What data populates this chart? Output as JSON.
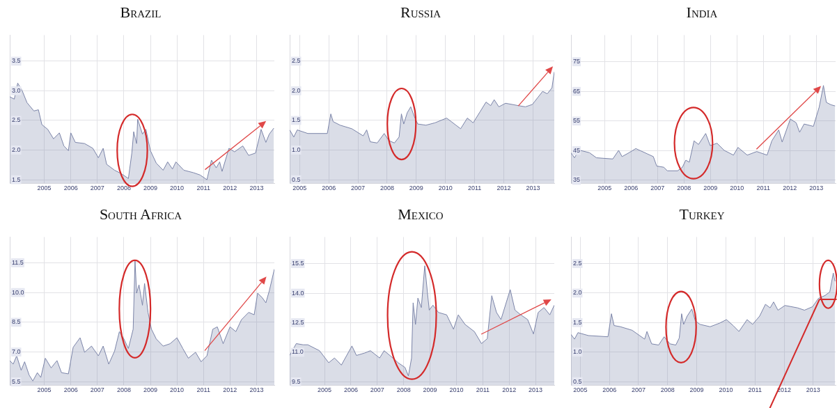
{
  "chart_data": [
    {
      "type": "area",
      "title": "Brazil",
      "color": "#7b84a8",
      "grid": true,
      "xlim": [
        2004.2,
        2014.17
      ],
      "ylim": [
        1.44,
        3.94
      ],
      "xticks": [
        {
          "value": 2005.5,
          "label": "2005"
        },
        {
          "value": 2006.5,
          "label": "2006"
        },
        {
          "value": 2007.5,
          "label": "2007"
        },
        {
          "value": 2008.5,
          "label": "2008"
        },
        {
          "value": 2009.5,
          "label": "2009"
        },
        {
          "value": 2010.5,
          "label": "2010"
        },
        {
          "value": 2011.5,
          "label": "2011"
        },
        {
          "value": 2012.5,
          "label": "2012"
        },
        {
          "value": 2013.5,
          "label": "2013"
        }
      ],
      "yticks": [
        1.5,
        {
          "value": 2,
          "label": "2.0"
        },
        2.5,
        {
          "value": 3,
          "label": "3.0"
        },
        3.5
      ],
      "x": [
        2004.2,
        2004.37,
        2004.5,
        2004.67,
        2004.85,
        2005.11,
        2005.28,
        2005.41,
        2005.63,
        2005.85,
        2006.07,
        2006.24,
        2006.41,
        2006.5,
        2006.67,
        2007.02,
        2007.33,
        2007.54,
        2007.72,
        2007.85,
        2008.15,
        2008.41,
        2008.67,
        2008.8,
        2008.87,
        2008.98,
        2009.02,
        2009.2,
        2009.33,
        2009.5,
        2009.72,
        2009.98,
        2010.15,
        2010.33,
        2010.46,
        2010.76,
        2011.11,
        2011.37,
        2011.63,
        2011.8,
        2011.98,
        2012.11,
        2012.2,
        2012.46,
        2012.67,
        2012.98,
        2013.2,
        2013.46,
        2013.59,
        2013.67,
        2013.85,
        2013.98,
        2014.15
      ],
      "values": [
        2.9,
        2.86,
        3.13,
        3.0,
        2.8,
        2.66,
        2.68,
        2.43,
        2.35,
        2.19,
        2.29,
        2.07,
        1.99,
        2.29,
        2.13,
        2.11,
        2.03,
        1.87,
        2.03,
        1.76,
        1.66,
        1.6,
        1.52,
        1.95,
        2.31,
        2.11,
        2.52,
        2.27,
        2.35,
        1.99,
        1.78,
        1.66,
        1.8,
        1.68,
        1.8,
        1.66,
        1.62,
        1.58,
        1.5,
        1.83,
        1.7,
        1.8,
        1.64,
        2.03,
        1.97,
        2.07,
        1.91,
        1.95,
        2.19,
        2.35,
        2.13,
        2.27,
        2.37
      ]
    },
    {
      "type": "area",
      "title": "Russia",
      "color": "#7b84a8",
      "grid": true,
      "xlim": [
        2005.16,
        2014.23
      ],
      "ylim": [
        0.44,
        2.94
      ],
      "xticks": [
        {
          "value": 2005.5,
          "label": "2005"
        },
        {
          "value": 2006.5,
          "label": "2006"
        },
        {
          "value": 2007.5,
          "label": "2007"
        },
        {
          "value": 2008.5,
          "label": "2008"
        },
        {
          "value": 2009.5,
          "label": "2009"
        },
        {
          "value": 2010.5,
          "label": "2010"
        },
        {
          "value": 2011.5,
          "label": "2011"
        },
        {
          "value": 2012.5,
          "label": "2012"
        },
        {
          "value": 2013.5,
          "label": "2013"
        }
      ],
      "yticks": [
        0.5,
        {
          "value": 1,
          "label": "1.0"
        },
        1.5,
        {
          "value": 2,
          "label": "2.0"
        },
        2.5
      ],
      "x": [
        2005.16,
        2005.3,
        2005.42,
        2005.78,
        2006.45,
        2006.57,
        2006.65,
        2006.89,
        2007.29,
        2007.68,
        2007.8,
        2007.92,
        2008.16,
        2008.4,
        2008.56,
        2008.75,
        2008.91,
        2008.99,
        2009.07,
        2009.19,
        2009.31,
        2009.43,
        2009.55,
        2009.83,
        2010.14,
        2010.54,
        2010.86,
        2011.02,
        2011.25,
        2011.45,
        2011.69,
        2011.89,
        2012.05,
        2012.17,
        2012.33,
        2012.56,
        2013.0,
        2013.24,
        2013.48,
        2013.67,
        2013.83,
        2013.99,
        2014.15,
        2014.23
      ],
      "values": [
        1.34,
        1.22,
        1.34,
        1.28,
        1.28,
        1.61,
        1.48,
        1.42,
        1.36,
        1.24,
        1.34,
        1.14,
        1.12,
        1.28,
        1.16,
        1.12,
        1.22,
        1.61,
        1.44,
        1.63,
        1.73,
        1.57,
        1.44,
        1.42,
        1.46,
        1.54,
        1.42,
        1.36,
        1.54,
        1.46,
        1.65,
        1.81,
        1.75,
        1.85,
        1.73,
        1.79,
        1.75,
        1.73,
        1.77,
        1.89,
        1.99,
        1.95,
        2.05,
        2.32
      ]
    },
    {
      "type": "area",
      "title": "India",
      "color": "#7b84a8",
      "grid": true,
      "xlim": [
        2004.23,
        2014.23
      ],
      "ylim": [
        34,
        84
      ],
      "xticks": [
        {
          "value": 2005.5,
          "label": "2005"
        },
        {
          "value": 2006.5,
          "label": "2006"
        },
        {
          "value": 2007.5,
          "label": "2007"
        },
        {
          "value": 2008.5,
          "label": "2008"
        },
        {
          "value": 2009.5,
          "label": "2009"
        },
        {
          "value": 2010.5,
          "label": "2010"
        },
        {
          "value": 2011.5,
          "label": "2011"
        },
        {
          "value": 2012.5,
          "label": "2012"
        },
        {
          "value": 2013.5,
          "label": "2013"
        }
      ],
      "yticks": [
        35,
        45,
        55,
        65,
        75
      ],
      "x": [
        2004.23,
        2004.36,
        2004.54,
        2004.93,
        2005.19,
        2005.81,
        2006.03,
        2006.16,
        2006.42,
        2006.68,
        2007.12,
        2007.34,
        2007.47,
        2007.74,
        2007.87,
        2008.26,
        2008.44,
        2008.57,
        2008.7,
        2008.88,
        2009.05,
        2009.32,
        2009.49,
        2009.75,
        2010.02,
        2010.37,
        2010.54,
        2010.89,
        2011.25,
        2011.64,
        2011.82,
        2012.08,
        2012.21,
        2012.52,
        2012.74,
        2012.87,
        2013.04,
        2013.39,
        2013.61,
        2013.77,
        2013.88,
        2014.05,
        2014.21
      ],
      "values": [
        44.3,
        42.6,
        45.2,
        44.3,
        42.6,
        42.2,
        45.1,
        43,
        44.3,
        45.7,
        43.9,
        43,
        39.8,
        39.4,
        38.2,
        38.2,
        39.4,
        41.8,
        41.1,
        48.3,
        47.1,
        50.8,
        46.7,
        47.5,
        45.1,
        43.5,
        46.1,
        43.5,
        44.7,
        43.5,
        48.3,
        52,
        47.9,
        55.7,
        54.4,
        51.2,
        54,
        53.2,
        59.7,
        67,
        61.3,
        60.5,
        60.1
      ]
    },
    {
      "type": "area",
      "title": "South Africa",
      "color": "#7b84a8",
      "grid": true,
      "xlim": [
        2004.2,
        2014.17
      ],
      "ylim": [
        5.33,
        12.8
      ],
      "xticks": [
        {
          "value": 2005.5,
          "label": "2005"
        },
        {
          "value": 2006.5,
          "label": "2006"
        },
        {
          "value": 2007.5,
          "label": "2007"
        },
        {
          "value": 2008.5,
          "label": "2008"
        },
        {
          "value": 2009.5,
          "label": "2009"
        },
        {
          "value": 2010.5,
          "label": "2010"
        },
        {
          "value": 2011.5,
          "label": "2011"
        },
        {
          "value": 2012.5,
          "label": "2012"
        },
        {
          "value": 2013.5,
          "label": "2013"
        }
      ],
      "yticks": [
        5.5,
        {
          "value": 7,
          "label": "7.0"
        },
        8.5,
        {
          "value": 10,
          "label": "10.0"
        },
        11.5
      ],
      "x": [
        2004.2,
        2004.33,
        2004.46,
        2004.63,
        2004.76,
        2004.93,
        2005.07,
        2005.24,
        2005.37,
        2005.54,
        2005.76,
        2005.98,
        2006.15,
        2006.41,
        2006.59,
        2006.85,
        2007.02,
        2007.28,
        2007.54,
        2007.72,
        2007.93,
        2008.15,
        2008.33,
        2008.5,
        2008.67,
        2008.85,
        2008.92,
        2008.98,
        2009.07,
        2009.2,
        2009.28,
        2009.41,
        2009.54,
        2009.72,
        2009.98,
        2010.24,
        2010.5,
        2010.72,
        2010.93,
        2011.2,
        2011.41,
        2011.63,
        2011.85,
        2012.02,
        2012.24,
        2012.5,
        2012.72,
        2012.93,
        2013.2,
        2013.41,
        2013.54,
        2013.72,
        2013.85,
        2013.98,
        2014.17
      ],
      "values": [
        6.57,
        6.39,
        6.81,
        6.08,
        6.51,
        5.84,
        5.54,
        5.96,
        5.72,
        6.69,
        6.2,
        6.57,
        5.96,
        5.9,
        7.24,
        7.72,
        6.99,
        7.3,
        6.81,
        7.3,
        6.39,
        7.05,
        8.03,
        7.66,
        7.18,
        8.15,
        11.61,
        9.97,
        10.39,
        9.36,
        10.46,
        9.0,
        8.15,
        7.66,
        7.3,
        7.42,
        7.72,
        7.18,
        6.69,
        6.99,
        6.51,
        6.81,
        8.15,
        8.27,
        7.42,
        8.27,
        8.03,
        8.63,
        9.0,
        8.88,
        9.97,
        9.73,
        9.48,
        10.09,
        11.18
      ]
    },
    {
      "type": "area",
      "title": "Mexico",
      "color": "#7b84a8",
      "grid": true,
      "xlim": [
        2004.18,
        2014.21
      ],
      "ylim": [
        9.33,
        16.85
      ],
      "xticks": [
        {
          "value": 2005.5,
          "label": "2005"
        },
        {
          "value": 2006.5,
          "label": "2006"
        },
        {
          "value": 2007.5,
          "label": "2007"
        },
        {
          "value": 2008.5,
          "label": "2008"
        },
        {
          "value": 2009.5,
          "label": "2009"
        },
        {
          "value": 2010.5,
          "label": "2010"
        },
        {
          "value": 2011.5,
          "label": "2011"
        },
        {
          "value": 2012.5,
          "label": "2012"
        },
        {
          "value": 2013.5,
          "label": "2013"
        }
      ],
      "yticks": [
        9.5,
        {
          "value": 11,
          "label": "11.0"
        },
        12.5,
        {
          "value": 14,
          "label": "14.0"
        },
        15.5
      ],
      "x": [
        2004.18,
        2004.43,
        2004.69,
        2004.87,
        2005.31,
        2005.66,
        2005.88,
        2006.14,
        2006.54,
        2006.71,
        2007.02,
        2007.24,
        2007.59,
        2007.76,
        2008.03,
        2008.29,
        2008.55,
        2008.68,
        2008.8,
        2008.86,
        2008.95,
        2009.04,
        2009.17,
        2009.3,
        2009.47,
        2009.61,
        2009.82,
        2010.13,
        2010.39,
        2010.57,
        2010.83,
        2011.18,
        2011.45,
        2011.67,
        2011.84,
        2012.02,
        2012.19,
        2012.54,
        2012.72,
        2012.94,
        2013.2,
        2013.42,
        2013.6,
        2013.82,
        2014.04,
        2014.21
      ],
      "values": [
        10.84,
        11.44,
        11.38,
        11.38,
        11.08,
        10.47,
        10.71,
        10.35,
        11.32,
        10.84,
        10.96,
        11.08,
        10.71,
        11.08,
        10.78,
        10.47,
        10.23,
        9.8,
        10.71,
        13.51,
        12.41,
        13.75,
        13.27,
        15.39,
        13.14,
        13.39,
        13.02,
        12.9,
        12.17,
        12.9,
        12.41,
        12.05,
        11.44,
        11.69,
        13.87,
        13.02,
        12.66,
        14.18,
        13.14,
        12.9,
        12.66,
        11.93,
        13.02,
        13.27,
        12.9,
        13.39
      ]
    },
    {
      "type": "area",
      "title": "Turkey",
      "color": "#7b84a8",
      "grid": true,
      "xlim": [
        2005.18,
        2014.27
      ],
      "ylim": [
        0.44,
        2.95
      ],
      "xticks": [
        {
          "value": 2005.5,
          "label": "2005"
        },
        {
          "value": 2006.5,
          "label": "2006"
        },
        {
          "value": 2007.5,
          "label": "2007"
        },
        {
          "value": 2008.5,
          "label": "2008"
        },
        {
          "value": 2009.5,
          "label": "2009"
        },
        {
          "value": 2010.5,
          "label": "2010"
        },
        {
          "value": 2011.5,
          "label": "2011"
        },
        {
          "value": 2012.5,
          "label": "2012"
        },
        {
          "value": 2013.5,
          "label": "2013"
        }
      ],
      "yticks": [
        0.5,
        {
          "value": 1,
          "label": "1.0"
        },
        1.5,
        {
          "value": 2,
          "label": "2.0"
        },
        2.5
      ],
      "x": [
        2005.18,
        2005.3,
        2005.42,
        2005.78,
        2006.45,
        2006.57,
        2006.66,
        2006.88,
        2007.28,
        2007.71,
        2007.79,
        2007.95,
        2008.19,
        2008.38,
        2008.58,
        2008.78,
        2008.9,
        2008.98,
        2009.05,
        2009.17,
        2009.33,
        2009.45,
        2009.61,
        2009.96,
        2010.28,
        2010.52,
        2010.75,
        2010.95,
        2011.23,
        2011.42,
        2011.66,
        2011.86,
        2012.02,
        2012.14,
        2012.29,
        2012.53,
        2012.96,
        2013.2,
        2013.48,
        2013.68,
        2013.91,
        2014.07,
        2014.19,
        2014.25
      ],
      "values": [
        1.3,
        1.22,
        1.33,
        1.28,
        1.26,
        1.65,
        1.45,
        1.43,
        1.37,
        1.22,
        1.35,
        1.14,
        1.12,
        1.26,
        1.14,
        1.12,
        1.24,
        1.65,
        1.47,
        1.61,
        1.73,
        1.53,
        1.47,
        1.43,
        1.49,
        1.55,
        1.45,
        1.35,
        1.55,
        1.47,
        1.61,
        1.81,
        1.75,
        1.85,
        1.71,
        1.79,
        1.75,
        1.71,
        1.77,
        1.91,
        1.96,
        2.02,
        2.34,
        2.2
      ]
    }
  ]
}
